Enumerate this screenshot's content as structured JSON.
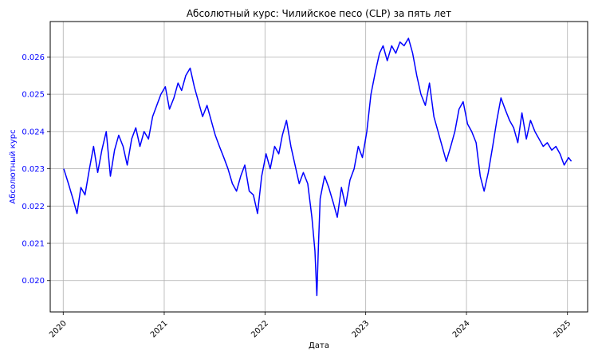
{
  "chart_data": {
    "type": "line",
    "title": "Абсолютный курс: Чилийское песо (CLP) за пять лет",
    "xlabel": "Дата",
    "ylabel": "Абсолютный курс",
    "grid": true,
    "line_color": "#0000ff",
    "ylabel_color": "#0000ff",
    "ytick_color": "#0000ff",
    "xlim": [
      "2019-11-15",
      "2025-03-15"
    ],
    "ylim": [
      0.01916,
      0.02695
    ],
    "xticks": [
      "2020",
      "2021",
      "2022",
      "2023",
      "2024",
      "2025"
    ],
    "yticks": [
      "0.020",
      "0.021",
      "0.022",
      "0.023",
      "0.024",
      "0.025",
      "0.026"
    ],
    "series": [
      {
        "x": [
          "2020-01-03",
          "2020-01-20",
          "2020-02-05",
          "2020-02-20",
          "2020-03-05",
          "2020-03-20",
          "2020-04-05",
          "2020-04-20",
          "2020-05-05",
          "2020-05-20",
          "2020-06-05",
          "2020-06-20",
          "2020-07-05",
          "2020-07-20",
          "2020-08-05",
          "2020-08-20",
          "2020-09-05",
          "2020-09-20",
          "2020-10-05",
          "2020-10-20",
          "2020-11-05",
          "2020-11-20",
          "2020-12-05",
          "2020-12-20",
          "2021-01-05",
          "2021-01-20",
          "2021-02-05",
          "2021-02-20",
          "2021-03-05",
          "2021-03-20",
          "2021-04-05",
          "2021-04-20",
          "2021-05-05",
          "2021-05-20",
          "2021-06-05",
          "2021-06-20",
          "2021-07-05",
          "2021-07-20",
          "2021-08-05",
          "2021-08-20",
          "2021-09-05",
          "2021-09-20",
          "2021-10-05",
          "2021-10-20",
          "2021-11-05",
          "2021-11-20",
          "2021-12-05",
          "2021-12-20",
          "2022-01-05",
          "2022-01-20",
          "2022-02-05",
          "2022-02-20",
          "2022-03-05",
          "2022-03-20",
          "2022-04-05",
          "2022-04-20",
          "2022-05-05",
          "2022-05-20",
          "2022-06-05",
          "2022-06-20",
          "2022-07-01",
          "2022-07-08",
          "2022-07-14",
          "2022-07-20",
          "2022-08-05",
          "2022-08-20",
          "2022-09-05",
          "2022-09-20",
          "2022-10-05",
          "2022-10-20",
          "2022-11-05",
          "2022-11-20",
          "2022-12-05",
          "2022-12-20",
          "2023-01-05",
          "2023-01-20",
          "2023-02-05",
          "2023-02-20",
          "2023-03-05",
          "2023-03-20",
          "2023-04-05",
          "2023-04-20",
          "2023-05-05",
          "2023-05-20",
          "2023-06-05",
          "2023-06-20",
          "2023-07-05",
          "2023-07-20",
          "2023-08-05",
          "2023-08-20",
          "2023-09-05",
          "2023-09-20",
          "2023-10-05",
          "2023-10-20",
          "2023-11-05",
          "2023-11-20",
          "2023-12-05",
          "2023-12-20",
          "2024-01-05",
          "2024-01-20",
          "2024-02-05",
          "2024-02-20",
          "2024-03-05",
          "2024-03-20",
          "2024-04-05",
          "2024-04-20",
          "2024-05-05",
          "2024-05-20",
          "2024-06-05",
          "2024-06-20",
          "2024-07-05",
          "2024-07-20",
          "2024-08-05",
          "2024-08-20",
          "2024-09-05",
          "2024-09-20",
          "2024-10-05",
          "2024-10-20",
          "2024-11-05",
          "2024-11-20",
          "2024-12-05",
          "2024-12-20",
          "2025-01-05",
          "2025-01-15"
        ],
        "y": [
          0.023,
          0.0226,
          0.0222,
          0.0218,
          0.0225,
          0.0223,
          0.023,
          0.0236,
          0.0229,
          0.0235,
          0.024,
          0.0228,
          0.0235,
          0.0239,
          0.0236,
          0.0231,
          0.0238,
          0.0241,
          0.0236,
          0.024,
          0.0238,
          0.0244,
          0.0247,
          0.025,
          0.0252,
          0.0246,
          0.0249,
          0.0253,
          0.0251,
          0.0255,
          0.0257,
          0.0252,
          0.0248,
          0.0244,
          0.0247,
          0.0243,
          0.0239,
          0.0236,
          0.0233,
          0.023,
          0.0226,
          0.0224,
          0.0228,
          0.0231,
          0.0224,
          0.0223,
          0.0218,
          0.0228,
          0.0234,
          0.023,
          0.0236,
          0.0234,
          0.0239,
          0.0243,
          0.0236,
          0.0231,
          0.0226,
          0.0229,
          0.0226,
          0.0217,
          0.0208,
          0.0196,
          0.021,
          0.0222,
          0.0228,
          0.0225,
          0.0221,
          0.0217,
          0.0225,
          0.022,
          0.0227,
          0.023,
          0.0236,
          0.0233,
          0.024,
          0.025,
          0.0256,
          0.0261,
          0.0263,
          0.0259,
          0.0263,
          0.0261,
          0.0264,
          0.0263,
          0.0265,
          0.0261,
          0.0255,
          0.025,
          0.0247,
          0.0253,
          0.0244,
          0.024,
          0.0236,
          0.0232,
          0.0236,
          0.024,
          0.0246,
          0.0248,
          0.0242,
          0.024,
          0.0237,
          0.0228,
          0.0224,
          0.0229,
          0.0236,
          0.0243,
          0.0249,
          0.0246,
          0.0243,
          0.0241,
          0.0237,
          0.0245,
          0.0238,
          0.0243,
          0.024,
          0.0238,
          0.0236,
          0.0237,
          0.0235,
          0.0236,
          0.0234,
          0.0231,
          0.0233,
          0.0232
        ]
      }
    ]
  }
}
